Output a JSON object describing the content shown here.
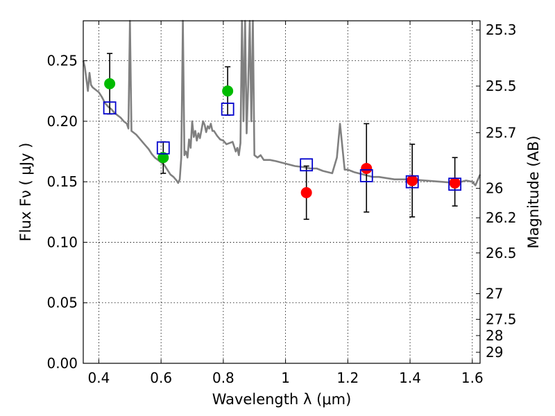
{
  "chart_data": {
    "type": "scatter",
    "title": "",
    "xlabel": "Wavelength  λ (μm)",
    "ylabel": "Flux  Fν  ( μJy )",
    "ylabel_right": "Magnitude (AB)",
    "xlim": [
      0.35,
      1.625
    ],
    "ylim": [
      0.0,
      0.283
    ],
    "grid": true,
    "x_ticks": [
      0.4,
      0.6,
      0.8,
      1.0,
      1.2,
      1.4,
      1.6
    ],
    "x_tick_labels": [
      "0.4",
      "0.6",
      "0.8",
      "1",
      "1.2",
      "1.4",
      "1.6"
    ],
    "y_ticks": [
      0.0,
      0.05,
      0.1,
      0.15,
      0.2,
      0.25
    ],
    "y_tick_labels": [
      "0.00",
      "0.05",
      "0.10",
      "0.15",
      "0.20",
      "0.25"
    ],
    "right_ticks": [
      {
        "label": "25.3",
        "mag": 25.3
      },
      {
        "label": "25.5",
        "mag": 25.5
      },
      {
        "label": "25.7",
        "mag": 25.7
      },
      {
        "label": "26",
        "mag": 26.0
      },
      {
        "label": "26.2",
        "mag": 26.2
      },
      {
        "label": "26.5",
        "mag": 26.5
      },
      {
        "label": "27",
        "mag": 27.0
      },
      {
        "label": "27.5",
        "mag": 27.5
      },
      {
        "label": "28",
        "mag": 28.0
      },
      {
        "label": "29",
        "mag": 29.0
      }
    ],
    "colors": {
      "model": "#808080",
      "green": "#00bb00",
      "red": "#ff0000",
      "model_box": "#0000cc",
      "error": "#000000"
    },
    "series": [
      {
        "name": "Model spectrum",
        "kind": "line",
        "x": [
          0.35,
          0.355,
          0.36,
          0.365,
          0.37,
          0.375,
          0.38,
          0.39,
          0.4,
          0.41,
          0.42,
          0.43,
          0.44,
          0.45,
          0.46,
          0.47,
          0.48,
          0.49,
          0.495,
          0.5,
          0.505,
          0.51,
          0.52,
          0.53,
          0.54,
          0.55,
          0.56,
          0.57,
          0.58,
          0.59,
          0.6,
          0.61,
          0.62,
          0.63,
          0.64,
          0.65,
          0.655,
          0.66,
          0.665,
          0.67,
          0.675,
          0.68,
          0.685,
          0.69,
          0.695,
          0.7,
          0.705,
          0.71,
          0.715,
          0.72,
          0.725,
          0.73,
          0.735,
          0.74,
          0.745,
          0.75,
          0.755,
          0.76,
          0.765,
          0.77,
          0.78,
          0.79,
          0.8,
          0.81,
          0.82,
          0.83,
          0.835,
          0.84,
          0.845,
          0.85,
          0.855,
          0.86,
          0.865,
          0.87,
          0.875,
          0.88,
          0.885,
          0.89,
          0.895,
          0.9,
          0.91,
          0.92,
          0.93,
          0.95,
          0.97,
          1.0,
          1.03,
          1.06,
          1.08,
          1.1,
          1.12,
          1.15,
          1.165,
          1.175,
          1.18,
          1.19,
          1.2,
          1.22,
          1.25,
          1.28,
          1.3,
          1.35,
          1.4,
          1.45,
          1.5,
          1.55,
          1.58,
          1.6,
          1.61,
          1.625
        ],
        "y": [
          0.25,
          0.245,
          0.235,
          0.225,
          0.24,
          0.23,
          0.228,
          0.226,
          0.224,
          0.22,
          0.215,
          0.212,
          0.21,
          0.207,
          0.205,
          0.203,
          0.2,
          0.198,
          0.194,
          0.285,
          0.192,
          0.191,
          0.189,
          0.186,
          0.183,
          0.18,
          0.177,
          0.173,
          0.17,
          0.168,
          0.166,
          0.164,
          0.16,
          0.156,
          0.154,
          0.151,
          0.149,
          0.152,
          0.17,
          0.285,
          0.172,
          0.175,
          0.17,
          0.185,
          0.178,
          0.2,
          0.187,
          0.192,
          0.184,
          0.19,
          0.186,
          0.193,
          0.2,
          0.197,
          0.191,
          0.196,
          0.194,
          0.198,
          0.192,
          0.192,
          0.188,
          0.185,
          0.184,
          0.181,
          0.182,
          0.183,
          0.179,
          0.175,
          0.178,
          0.172,
          0.182,
          0.285,
          0.2,
          0.285,
          0.19,
          0.23,
          0.285,
          0.2,
          0.285,
          0.172,
          0.17,
          0.172,
          0.168,
          0.168,
          0.167,
          0.165,
          0.163,
          0.162,
          0.161,
          0.161,
          0.159,
          0.157,
          0.17,
          0.198,
          0.185,
          0.16,
          0.16,
          0.158,
          0.156,
          0.154,
          0.154,
          0.152,
          0.152,
          0.151,
          0.15,
          0.149,
          0.151,
          0.15,
          0.147,
          0.156
        ]
      },
      {
        "name": "Green photometry",
        "kind": "points",
        "points": [
          {
            "x": 0.435,
            "y": 0.231,
            "err_lo": 0.206,
            "err_hi": 0.256
          },
          {
            "x": 0.607,
            "y": 0.17,
            "err_lo": 0.157,
            "err_hi": 0.183
          },
          {
            "x": 0.814,
            "y": 0.225,
            "err_lo": 0.205,
            "err_hi": 0.245
          }
        ]
      },
      {
        "name": "Red photometry",
        "kind": "points",
        "points": [
          {
            "x": 1.067,
            "y": 0.141,
            "err_lo": 0.119,
            "err_hi": 0.163
          },
          {
            "x": 1.26,
            "y": 0.161,
            "err_lo": 0.125,
            "err_hi": 0.198
          },
          {
            "x": 1.407,
            "y": 0.151,
            "err_lo": 0.121,
            "err_hi": 0.181
          },
          {
            "x": 1.544,
            "y": 0.149,
            "err_lo": 0.13,
            "err_hi": 0.17
          }
        ]
      },
      {
        "name": "Model band fluxes",
        "kind": "boxes",
        "points": [
          {
            "x": 0.435,
            "y": 0.211
          },
          {
            "x": 0.607,
            "y": 0.178
          },
          {
            "x": 0.814,
            "y": 0.21
          },
          {
            "x": 1.067,
            "y": 0.164
          },
          {
            "x": 1.26,
            "y": 0.155
          },
          {
            "x": 1.407,
            "y": 0.15
          },
          {
            "x": 1.544,
            "y": 0.148
          }
        ]
      }
    ]
  }
}
